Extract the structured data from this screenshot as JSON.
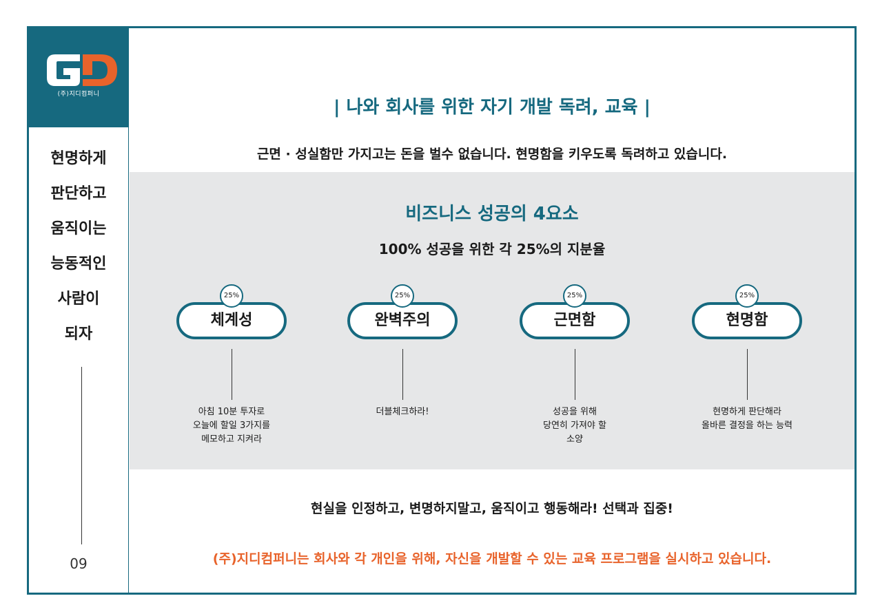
{
  "logo": {
    "caption": "(주)지디컴퍼니",
    "colors": {
      "background": "#16697f",
      "g": "#ffffff",
      "d": "#e8632b"
    }
  },
  "sidebar": {
    "slogan": [
      "현명하게",
      "판단하고",
      "움직이는",
      "능동적인",
      "사람이",
      "되자"
    ],
    "page_number": "09"
  },
  "main": {
    "heading": "| 나와 회사를 위한 자기 개발 독려, 교육 |",
    "subheading": "근면 · 성실함만 가지고는 돈을 벌수 없습니다. 현명함을 키우도록 독려하고 있습니다.",
    "panel": {
      "title": "비즈니스 성공의 4요소",
      "subtitle": "100% 성공을 위한 각 25%의 지분율",
      "elements": [
        {
          "percent": "25%",
          "name": "체계성",
          "desc": [
            "아침 10분 투자로",
            "오늘에 할일 3가지를",
            "메모하고 지켜라"
          ]
        },
        {
          "percent": "25%",
          "name": "완벽주의",
          "desc": [
            "더블체크하라!"
          ]
        },
        {
          "percent": "25%",
          "name": "근면함",
          "desc": [
            "성공을 위해",
            "당연히 가져야 할",
            "소양"
          ]
        },
        {
          "percent": "25%",
          "name": "현명함",
          "desc": [
            "현명하게 판단해라",
            "올바른 결정을 하는 능력"
          ]
        }
      ]
    },
    "motto": "현실을 인정하고, 변명하지말고, 움직이고 행동해라! 선택과 집중!",
    "closing": "(주)지디컴퍼니는 회사와 각 개인을 위해, 자신을 개발할 수 있는 교육 프로그램을 실시하고 있습니다."
  },
  "colors": {
    "accent": "#16697f",
    "highlight": "#e8632b",
    "panel": "#e6e7e8"
  }
}
